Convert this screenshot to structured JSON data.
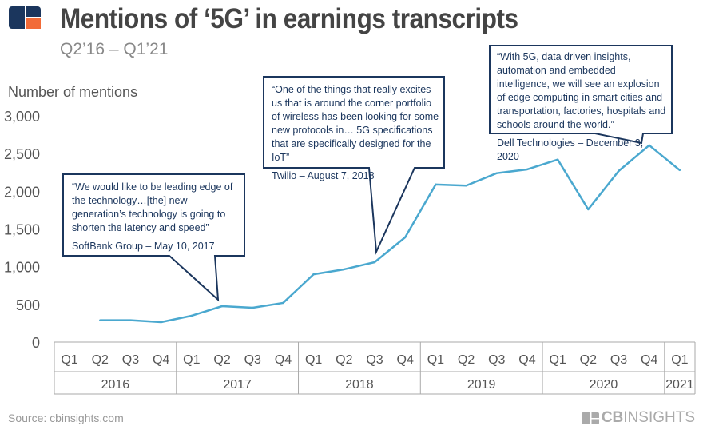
{
  "header": {
    "title": "Mentions of ‘5G’ in earnings transcripts",
    "subtitle": "Q2’16 – Q1’21"
  },
  "colors": {
    "line": "#4aa8cf",
    "callout": "#1b365d",
    "logo_blue": "#1b365d",
    "logo_orange": "#f26b38",
    "axis_text": "#555"
  },
  "chart_data": {
    "type": "line",
    "ylabel": "Number of mentions",
    "ylim": [
      0,
      3000
    ],
    "yticks": [
      "0",
      "500",
      "1,000",
      "1,500",
      "2,000",
      "2,500",
      "3,000"
    ],
    "yticks_values": [
      0,
      500,
      1000,
      1500,
      2000,
      2500,
      3000
    ],
    "grid": false,
    "quarters": [
      "Q1",
      "Q2",
      "Q3",
      "Q4",
      "Q1",
      "Q2",
      "Q3",
      "Q4",
      "Q1",
      "Q2",
      "Q3",
      "Q4",
      "Q1",
      "Q2",
      "Q3",
      "Q4",
      "Q1",
      "Q2",
      "Q3",
      "Q4",
      "Q1"
    ],
    "years": [
      {
        "label": "2016",
        "span": 4
      },
      {
        "label": "2017",
        "span": 4
      },
      {
        "label": "2018",
        "span": 4
      },
      {
        "label": "2019",
        "span": 4
      },
      {
        "label": "2020",
        "span": 4
      },
      {
        "label": "2021",
        "span": 1
      }
    ],
    "values": [
      null,
      290,
      290,
      265,
      350,
      477,
      456,
      520,
      900,
      965,
      1060,
      1390,
      2090,
      2075,
      2240,
      2290,
      2420,
      1760,
      2270,
      2610,
      2280
    ]
  },
  "callouts": [
    {
      "quote": "“We would like to be leading edge of the technology…[the] new generation’s technology is going to shorten the latency and speed”",
      "source": "SoftBank Group – May 10, 2017"
    },
    {
      "quote": "“One of the things that really excites us that is around the corner portfolio of wireless has been looking for some new protocols in… 5G specifications that are specifically designed for the IoT”",
      "source": "Twilio – August 7, 2018"
    },
    {
      "quote": "“With 5G, data driven insights, automation and embedded intelligence, we will see an explosion of edge computing in smart cities and transportation, factories, hospitals and schools around the world.”",
      "source": "Dell Technologies – December 3, 2020"
    }
  ],
  "footer": {
    "source": "Source: cbinsights.com",
    "brand_bold": "CB",
    "brand_rest": "INSIGHTS"
  }
}
